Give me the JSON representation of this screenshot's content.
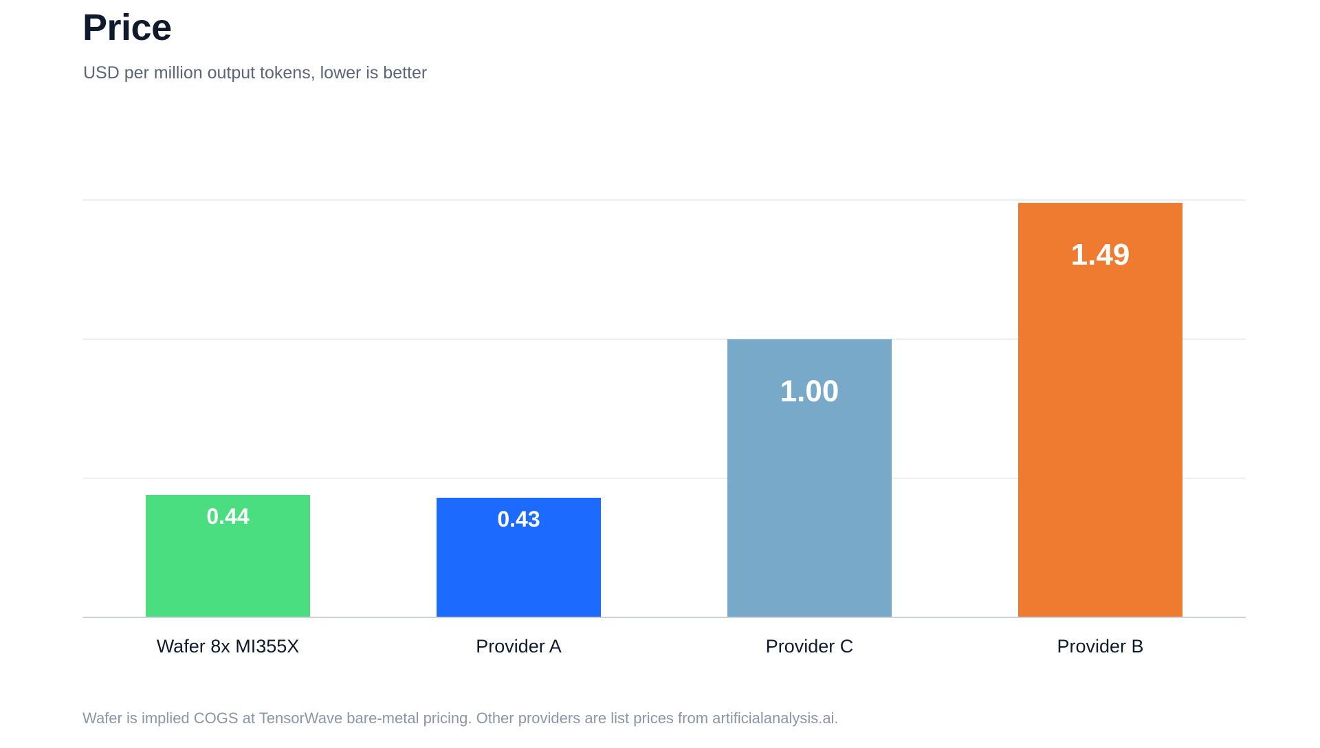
{
  "title": "Price",
  "subtitle": "USD per million output tokens, lower is better",
  "footnote": "Wafer is implied COGS at TensorWave bare-metal pricing. Other providers are list prices from artificialanalysis.ai.",
  "chart_data": {
    "type": "bar",
    "categories": [
      "Wafer 8x MI355X",
      "Provider A",
      "Provider C",
      "Provider B"
    ],
    "values": [
      0.44,
      0.43,
      1.0,
      1.49
    ],
    "value_labels": [
      "0.44",
      "0.43",
      "1.00",
      "1.49"
    ],
    "colors": [
      "#4ade80",
      "#1d6bfe",
      "#78a9c8",
      "#ee7b30"
    ],
    "title": "Price",
    "xlabel": "",
    "ylabel": "",
    "ylim": [
      0,
      1.5
    ],
    "grid": true,
    "gridlines": [
      0.5,
      1.0,
      1.5
    ]
  }
}
